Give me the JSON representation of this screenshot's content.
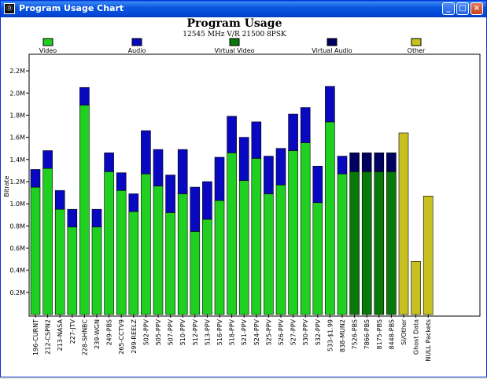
{
  "window": {
    "title": "Program Usage Chart",
    "controls": [
      "_",
      "□",
      "×"
    ]
  },
  "chart_data": {
    "type": "bar",
    "stacked": true,
    "title": "Program Usage",
    "subtitle": "12545 MHz V/R 21500 8PSK",
    "ylabel": "Bitrate",
    "xlabel": "",
    "ylim": [
      0,
      2.35
    ],
    "yticks": [
      0.2,
      0.4,
      0.6,
      0.8,
      1.0,
      1.2,
      1.4,
      1.6,
      1.8,
      2.0,
      2.2
    ],
    "ytick_labels": [
      "0.2M",
      "0.4M",
      "0.6M",
      "0.8M",
      "1.0M",
      "1.2M",
      "1.4M",
      "1.6M",
      "1.8M",
      "2.0M",
      "2.2M"
    ],
    "grid": false,
    "legend_position": "top",
    "legend": [
      {
        "name": "Video",
        "color": "#20d020"
      },
      {
        "name": "Audio",
        "color": "#0808c0"
      },
      {
        "name": "Virtual Video",
        "color": "#087808"
      },
      {
        "name": "Virtual Audio",
        "color": "#000060"
      },
      {
        "name": "Other",
        "color": "#c8c020"
      }
    ],
    "categories": [
      "196-CURNT",
      "212-CSPN2",
      "213-NASA",
      "227-JTV",
      "228-SHNBC",
      "239-WGN",
      "249-PBS",
      "265-CCTV9",
      "299-REELZ",
      "502-PPV",
      "505-PPV",
      "507-PPV",
      "510-PPV",
      "512-PPV",
      "513-PPV",
      "516-PPV",
      "518-PPV",
      "521-PPV",
      "524-PPV",
      "525-PPV",
      "526-PPV",
      "527-PPV",
      "530-PPV",
      "532-PPV",
      "533-$1.99",
      "838-MUN2",
      "7526-PBS",
      "7866-PBS",
      "8175-PBS",
      "8448-PBS",
      "SI/Other",
      "Ghost Data",
      "NULL Packets"
    ],
    "series": [
      {
        "name": "Video",
        "values": [
          1.15,
          1.32,
          0.95,
          0.79,
          1.89,
          0.79,
          1.29,
          1.12,
          0.93,
          1.27,
          1.16,
          0.92,
          1.09,
          0.75,
          0.86,
          1.03,
          1.46,
          1.21,
          1.41,
          1.09,
          1.17,
          1.48,
          1.55,
          1.01,
          1.74,
          1.27,
          0,
          0,
          0,
          0,
          0,
          0,
          0
        ]
      },
      {
        "name": "Audio",
        "values": [
          0.16,
          0.16,
          0.17,
          0.16,
          0.16,
          0.16,
          0.17,
          0.16,
          0.16,
          0.39,
          0.33,
          0.34,
          0.4,
          0.4,
          0.34,
          0.39,
          0.33,
          0.39,
          0.33,
          0.34,
          0.33,
          0.33,
          0.32,
          0.33,
          0.32,
          0.16,
          0,
          0,
          0,
          0,
          0,
          0,
          0
        ]
      },
      {
        "name": "Virtual Video",
        "values": [
          0,
          0,
          0,
          0,
          0,
          0,
          0,
          0,
          0,
          0,
          0,
          0,
          0,
          0,
          0,
          0,
          0,
          0,
          0,
          0,
          0,
          0,
          0,
          0,
          0,
          0,
          1.29,
          1.29,
          1.29,
          1.29,
          0,
          0,
          0
        ]
      },
      {
        "name": "Virtual Audio",
        "values": [
          0,
          0,
          0,
          0,
          0,
          0,
          0,
          0,
          0,
          0,
          0,
          0,
          0,
          0,
          0,
          0,
          0,
          0,
          0,
          0,
          0,
          0,
          0,
          0,
          0,
          0,
          0.17,
          0.17,
          0.17,
          0.17,
          0,
          0,
          0
        ]
      },
      {
        "name": "Other",
        "values": [
          0,
          0,
          0,
          0,
          0,
          0,
          0,
          0,
          0,
          0,
          0,
          0,
          0,
          0,
          0,
          0,
          0,
          0,
          0,
          0,
          0,
          0,
          0,
          0,
          0,
          0,
          0,
          0,
          0,
          0,
          1.64,
          0.48,
          1.07
        ]
      }
    ]
  }
}
